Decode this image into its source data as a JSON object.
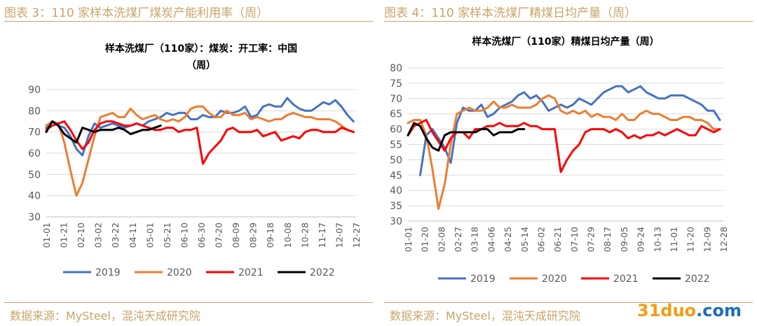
{
  "panels": [
    {
      "caption": "图表 3：110 家样本洗煤厂煤炭产能利用率（周）"
    },
    {
      "caption": "图表 4：110 家样本洗煤厂精煤日均产量（周）"
    }
  ],
  "sources": [
    {
      "text": "数据来源：MySteel，混沌天成研究院"
    },
    {
      "text": "数据来源：MySteel，混沌天成研究院"
    }
  ],
  "watermark": {
    "part1": "31duo",
    "part2": ".com"
  },
  "colors": {
    "2019": "#4472c4",
    "2020": "#ed7d31",
    "2021": "#ff0000",
    "2022": "#000000",
    "accent": "#c9a46a"
  },
  "chart_data": [
    {
      "type": "line",
      "title_lines": [
        "样本洗煤厂（110家）：煤炭：开工率：中国",
        "（周）"
      ],
      "ylim": [
        30,
        90
      ],
      "yticks": [
        30,
        40,
        50,
        60,
        70,
        80,
        90
      ],
      "x_ticks": [
        "01-01",
        "01-21",
        "02-10",
        "03-02",
        "03-22",
        "04-11",
        "05-01",
        "05-21",
        "06-10",
        "06-30",
        "07-20",
        "08-09",
        "08-29",
        "09-18",
        "10-08",
        "10-28",
        "11-17",
        "12-07",
        "12-27"
      ],
      "x_domain": [
        0,
        360
      ],
      "legend": "bottom",
      "series": [
        {
          "name": "2019",
          "color": "#4472c4",
          "x": [
            0,
            7,
            14,
            21,
            28,
            35,
            42,
            49,
            56,
            63,
            70,
            77,
            84,
            91,
            98,
            105,
            112,
            119,
            126,
            133,
            140,
            147,
            154,
            161,
            168,
            175,
            182,
            189,
            196,
            203,
            210,
            217,
            224,
            231,
            238,
            245,
            252,
            259,
            266,
            273,
            280,
            287,
            294,
            301,
            308,
            315,
            322,
            329,
            336,
            343,
            350,
            357
          ],
          "y": [
            72,
            75,
            73,
            72,
            68,
            62,
            59,
            68,
            74,
            72,
            73,
            74,
            73,
            72,
            73,
            74,
            73,
            75,
            76,
            77,
            79,
            78,
            79,
            79,
            76,
            76,
            78,
            77,
            77,
            80,
            79,
            79,
            80,
            82,
            77,
            78,
            82,
            83,
            82,
            82,
            86,
            83,
            81,
            80,
            80,
            82,
            84,
            83,
            85,
            82,
            78,
            75
          ]
        },
        {
          "name": "2020",
          "color": "#ed7d31",
          "x": [
            0,
            7,
            14,
            21,
            28,
            35,
            42,
            49,
            56,
            63,
            70,
            77,
            84,
            91,
            98,
            105,
            112,
            119,
            126,
            133,
            140,
            147,
            154,
            161,
            168,
            175,
            182,
            189,
            196,
            203,
            210,
            217,
            224,
            231,
            238,
            245,
            252,
            259,
            266,
            273,
            280,
            287,
            294,
            301,
            308,
            315,
            322,
            329,
            336,
            343,
            350,
            357
          ],
          "y": [
            73,
            75,
            74,
            65,
            52,
            40,
            46,
            57,
            68,
            77,
            78,
            79,
            77,
            77,
            81,
            78,
            76,
            77,
            78,
            76,
            75,
            76,
            75,
            77,
            81,
            82,
            82,
            79,
            77,
            77,
            80,
            78,
            78,
            79,
            76,
            77,
            76,
            75,
            76,
            76,
            78,
            79,
            78,
            77,
            77,
            76,
            76,
            76,
            75,
            73,
            71,
            70
          ]
        },
        {
          "name": "2021",
          "color": "#ff0000",
          "x": [
            0,
            7,
            14,
            21,
            28,
            35,
            42,
            49,
            56,
            63,
            70,
            77,
            84,
            91,
            98,
            105,
            112,
            119,
            126,
            133,
            140,
            147,
            154,
            161,
            168,
            175,
            182,
            189,
            196,
            203,
            210,
            217,
            224,
            231,
            238,
            245,
            252,
            259,
            266,
            273,
            280,
            287,
            294,
            301,
            308,
            315,
            322,
            329,
            336,
            343,
            350,
            357
          ],
          "y": [
            71,
            73,
            74,
            75,
            71,
            66,
            62,
            65,
            71,
            74,
            75,
            75,
            74,
            73,
            73,
            74,
            73,
            72,
            71,
            71,
            72,
            72,
            70,
            71,
            71,
            72,
            55,
            60,
            63,
            66,
            71,
            72,
            70,
            70,
            70,
            71,
            68,
            69,
            70,
            66,
            67,
            68,
            67,
            70,
            71,
            71,
            70,
            70,
            70,
            72,
            71,
            70
          ]
        },
        {
          "name": "2022",
          "color": "#000000",
          "x": [
            0,
            7,
            14,
            21,
            28,
            35,
            42,
            49,
            56,
            63,
            70,
            77,
            84,
            91,
            98,
            105,
            112,
            119,
            126,
            133
          ],
          "y": [
            70,
            75,
            73,
            69,
            67,
            65,
            72,
            71,
            70,
            71,
            71,
            71,
            72,
            71,
            69,
            70,
            71,
            71,
            72,
            73
          ]
        }
      ]
    },
    {
      "type": "line",
      "title_lines": [
        "样本洗煤厂（110家）精煤日均产量（周）"
      ],
      "ylim": [
        30,
        80
      ],
      "yticks": [
        30,
        35,
        40,
        45,
        50,
        55,
        60,
        65,
        70,
        75,
        80
      ],
      "x_ticks": [
        "01-01",
        "01-20",
        "02-08",
        "02-27",
        "03-18",
        "04-06",
        "04-25",
        "05-14",
        "06-02",
        "06-21",
        "07-10",
        "07-29",
        "08-17",
        "09-05",
        "09-24",
        "10-13",
        "11-01",
        "11-20",
        "12-09",
        "12-28"
      ],
      "x_domain": [
        0,
        361
      ],
      "legend": "bottom",
      "series": [
        {
          "name": "2019",
          "color": "#4472c4",
          "x": [
            14,
            21,
            28,
            35,
            42,
            49,
            56,
            63,
            70,
            77,
            84,
            91,
            98,
            105,
            112,
            119,
            126,
            133,
            140,
            147,
            154,
            161,
            168,
            175,
            182,
            189,
            196,
            203,
            210,
            217,
            224,
            231,
            238,
            245,
            252,
            259,
            266,
            273,
            280,
            287,
            294,
            301,
            308,
            315,
            322,
            329,
            336,
            343,
            350,
            357
          ],
          "y": [
            45,
            58,
            60,
            57,
            54,
            49,
            62,
            67,
            66,
            66,
            68,
            64,
            65,
            67,
            68,
            69,
            71,
            72,
            70,
            71,
            69,
            66,
            67,
            68,
            67,
            68,
            70,
            69,
            68,
            70,
            72,
            73,
            74,
            74,
            72,
            73,
            74,
            72,
            71,
            70,
            70,
            71,
            71,
            71,
            70,
            69,
            68,
            66,
            66,
            63
          ]
        },
        {
          "name": "2020",
          "color": "#ed7d31",
          "x": [
            0,
            7,
            14,
            21,
            28,
            35,
            42,
            49,
            56,
            63,
            70,
            77,
            84,
            91,
            98,
            105,
            112,
            119,
            126,
            133,
            140,
            147,
            154,
            161,
            168,
            175,
            182,
            189,
            196,
            203,
            210,
            217,
            224,
            231,
            238,
            245,
            252,
            259,
            266,
            273,
            280,
            287,
            294,
            301,
            308,
            315,
            322,
            329,
            336,
            343,
            350,
            357
          ],
          "y": [
            62,
            63,
            63,
            58,
            47,
            34,
            42,
            55,
            65,
            66,
            67,
            66,
            66,
            67,
            69,
            67,
            67,
            68,
            67,
            67,
            67,
            68,
            70,
            71,
            70,
            66,
            65,
            66,
            65,
            66,
            64,
            65,
            64,
            64,
            63,
            65,
            63,
            63,
            65,
            66,
            65,
            65,
            64,
            63,
            63,
            64,
            64,
            63,
            63,
            62,
            60,
            60
          ]
        },
        {
          "name": "2021",
          "color": "#ff0000",
          "x": [
            0,
            7,
            14,
            21,
            28,
            35,
            42,
            49,
            56,
            63,
            70,
            77,
            84,
            91,
            98,
            105,
            112,
            119,
            126,
            133,
            140,
            147,
            154,
            161,
            168,
            175,
            182,
            189,
            196,
            203,
            210,
            217,
            224,
            231,
            238,
            245,
            252,
            259,
            266,
            273,
            280,
            287,
            294,
            301,
            308,
            315,
            322,
            329,
            336,
            343,
            350,
            357
          ],
          "y": [
            58,
            61,
            62,
            63,
            59,
            56,
            53,
            57,
            59,
            59,
            57,
            60,
            60,
            61,
            61,
            62,
            61,
            61,
            61,
            62,
            61,
            61,
            60,
            60,
            60,
            46,
            50,
            53,
            55,
            59,
            60,
            60,
            60,
            59,
            60,
            59,
            57,
            58,
            57,
            58,
            58,
            59,
            58,
            59,
            60,
            59,
            58,
            58,
            61,
            60,
            59,
            60
          ]
        },
        {
          "name": "2022",
          "color": "#000000",
          "x": [
            0,
            7,
            14,
            21,
            28,
            35,
            42,
            49,
            56,
            63,
            70,
            77,
            84,
            91,
            98,
            105,
            112,
            119,
            126,
            133
          ],
          "y": [
            58,
            62,
            61,
            57,
            54,
            53,
            58,
            59,
            59,
            59,
            59,
            59,
            60,
            60,
            58,
            59,
            59,
            59,
            60,
            60
          ]
        }
      ]
    }
  ]
}
